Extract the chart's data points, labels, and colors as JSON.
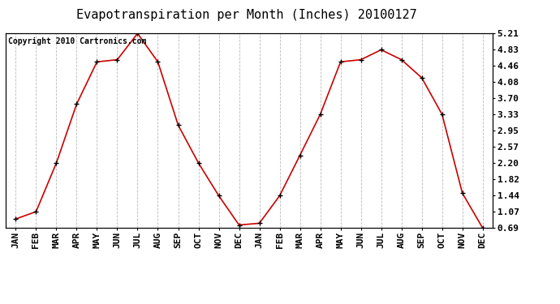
{
  "title": "Evapotranspiration per Month (Inches) 20100127",
  "copyright_text": "Copyright 2010 Cartronics.com",
  "x_labels": [
    "JAN",
    "FEB",
    "MAR",
    "APR",
    "MAY",
    "JUN",
    "JUL",
    "AUG",
    "SEP",
    "OCT",
    "NOV",
    "DEC",
    "JAN",
    "FEB",
    "MAR",
    "APR",
    "MAY",
    "JUN",
    "JUL",
    "AUG",
    "SEP",
    "OCT",
    "NOV",
    "DEC"
  ],
  "y_values": [
    0.9,
    1.07,
    2.2,
    3.57,
    4.55,
    4.6,
    5.21,
    4.55,
    3.08,
    2.2,
    1.44,
    0.76,
    0.8,
    1.44,
    2.38,
    3.33,
    4.55,
    4.6,
    4.83,
    4.6,
    4.18,
    3.33,
    1.5,
    0.69
  ],
  "y_ticks": [
    0.69,
    1.07,
    1.44,
    1.82,
    2.2,
    2.57,
    2.95,
    3.33,
    3.7,
    4.08,
    4.46,
    4.83,
    5.21
  ],
  "line_color": "#cc0000",
  "marker_color": "#000000",
  "bg_color": "#ffffff",
  "grid_color": "#bbbbbb",
  "title_fontsize": 11,
  "tick_fontsize": 8,
  "copyright_fontsize": 7
}
